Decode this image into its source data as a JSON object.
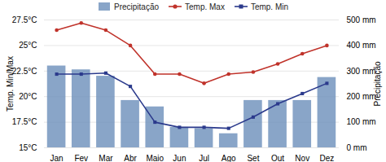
{
  "chart_data": {
    "type": "bar",
    "categories": [
      "Jan",
      "Fev",
      "Mar",
      "Abr",
      "Maio",
      "Jun",
      "Jul",
      "Ago",
      "Set",
      "Out",
      "Nov",
      "Dez"
    ],
    "series": [
      {
        "name": "Precipitação",
        "type": "bar",
        "axis": "y2",
        "color": "#6b8fba",
        "values": [
          320,
          305,
          280,
          185,
          160,
          80,
          75,
          55,
          185,
          185,
          185,
          275
        ]
      },
      {
        "name": "Temp. Max",
        "type": "line",
        "color": "#c0332b",
        "marker": "circle",
        "values": [
          26.5,
          27.2,
          26.5,
          25.0,
          22.2,
          22.2,
          21.3,
          22.2,
          22.4,
          23.2,
          24.2,
          25.0
        ]
      },
      {
        "name": "Temp. Min",
        "type": "line",
        "color": "#2b3a8c",
        "marker": "square",
        "values": [
          22.2,
          22.2,
          22.3,
          21.0,
          17.5,
          17.0,
          17.0,
          16.9,
          18.0,
          19.3,
          20.3,
          21.3
        ]
      }
    ],
    "ylabel": "Temp. Min/Max",
    "y2label": "Precipitação",
    "ylim": [
      15,
      27.5
    ],
    "yticks": [
      {
        "value": 15,
        "label": "15°C"
      },
      {
        "value": 17.5,
        "label": "17.5°C"
      },
      {
        "value": 20,
        "label": "20°C"
      },
      {
        "value": 22.5,
        "label": "22.5°C"
      },
      {
        "value": 25,
        "label": "25°C"
      },
      {
        "value": 27.5,
        "label": "27.5°C"
      }
    ],
    "y2lim": [
      0,
      500
    ],
    "y2ticks": [
      {
        "value": 0,
        "label": "0 mm"
      },
      {
        "value": 100,
        "label": "100 mm"
      },
      {
        "value": 200,
        "label": "200 mm"
      },
      {
        "value": 300,
        "label": "300 mm"
      },
      {
        "value": 400,
        "label": "400 mm"
      },
      {
        "value": 500,
        "label": "500 mm"
      }
    ],
    "grid": true,
    "legend": "top"
  }
}
